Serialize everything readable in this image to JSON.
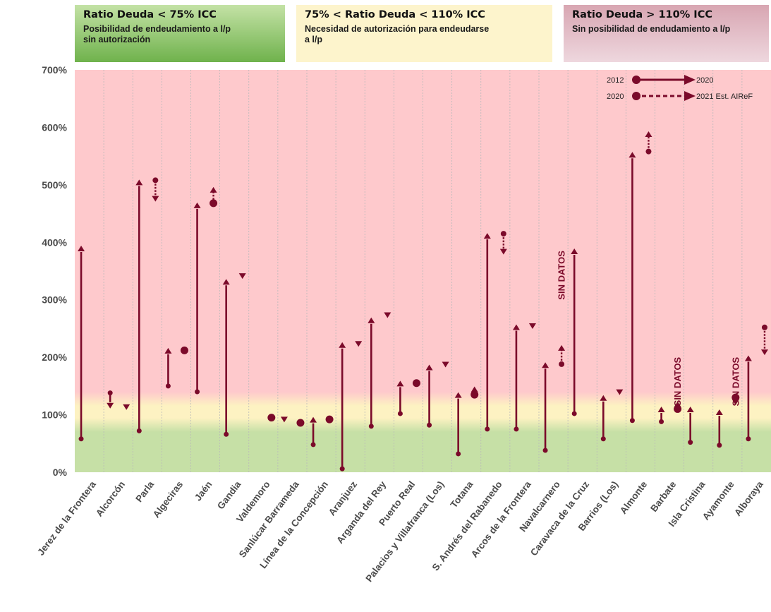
{
  "legend": {
    "low": {
      "title": "Ratio Deuda < 75% ICC",
      "desc_line1": "Posibilidad de endeudamiento a l/p",
      "desc_line2": "sin autorización",
      "color": "#79b957"
    },
    "mid": {
      "title": "75% < Ratio Deuda < 110% ICC",
      "desc_line1": "Necesidad de autorización para endeudarse",
      "desc_line2": "a l/p",
      "color": "#fdf4cc"
    },
    "high": {
      "title": "Ratio Deuda > 110% ICC",
      "desc_line1": "Sin posibilidad de endudamiento a l/p",
      "desc_line2": "",
      "color": "#e3bfc9"
    }
  },
  "key": {
    "solid_from": "2012",
    "solid_to": "2020",
    "dotted_from": "2020",
    "dotted_to": "2021 Est. AIReF"
  },
  "colors": {
    "marker": "#7b0a2a",
    "zone_red": "#fec9cc",
    "zone_yellow": "#fdf2c2",
    "zone_green": "#c6e0a6",
    "grid": "#b9b9b9",
    "axis_text": "#4a4a4a"
  },
  "no_data_label": "SIN DATOS",
  "chart_data": {
    "type": "arrow-range",
    "ylim": [
      0,
      700
    ],
    "yticks": [
      "0%",
      "100%",
      "200%",
      "300%",
      "400%",
      "500%",
      "600%",
      "700%"
    ],
    "categories": [
      "Jerez de la Frontera",
      "Alcorcón",
      "Parla",
      "Algeciras",
      "Jaén",
      "Gandia",
      "Valdemoro",
      "Sanlúcar Barrameda",
      "Línea de la Concepción",
      "Aranjuez",
      "Arganda del Rey",
      "Puerto Real",
      "Palacios y Villafranca (Los)",
      "Totana",
      "S. Andrés del Rabanedo",
      "Arcos de la Frontera",
      "Navalcarnero",
      "Caravaca de la Cruz",
      "Barrios (Los)",
      "Almonte",
      "Barbate",
      "Isla Cristina",
      "Ayamonte",
      "Alboraya"
    ],
    "series": [
      {
        "name": "2012 → 2020",
        "values": [
          [
            58,
            393
          ],
          [
            138,
            112
          ],
          [
            72,
            508
          ],
          [
            150,
            215
          ],
          [
            140,
            468
          ],
          [
            66,
            335
          ],
          [
            null,
            null
          ],
          [
            null,
            88
          ],
          [
            48,
            95
          ],
          [
            6,
            225
          ],
          [
            80,
            268
          ],
          [
            102,
            158
          ],
          [
            82,
            186
          ],
          [
            32,
            138
          ],
          [
            75,
            415
          ],
          [
            75,
            256
          ],
          [
            38,
            190
          ],
          [
            102,
            388
          ],
          [
            58,
            133
          ],
          [
            90,
            556
          ],
          [
            88,
            113
          ],
          [
            52,
            113
          ],
          [
            47,
            108
          ],
          [
            58,
            202
          ]
        ]
      },
      {
        "name": "2020 → 2021 Est. AIReF",
        "values": [
          [
            null,
            null
          ],
          [
            112,
            112
          ],
          [
            508,
            472
          ],
          [
            null,
            212
          ],
          [
            468,
            495
          ],
          [
            340,
            340
          ],
          [
            null,
            95
          ],
          [
            null,
            86
          ],
          [
            null,
            92
          ],
          [
            222,
            222
          ],
          [
            272,
            272
          ],
          [
            null,
            155
          ],
          [
            186,
            186
          ],
          [
            135,
            148
          ],
          [
            415,
            380
          ],
          [
            253,
            253
          ],
          [
            188,
            220
          ],
          [
            null,
            null
          ],
          [
            138,
            138
          ],
          [
            558,
            592
          ],
          [
            110,
            122
          ],
          [
            null,
            null
          ],
          [
            130,
            118
          ],
          [
            252,
            205
          ]
        ]
      }
    ],
    "no_data_categories": [
      "Navalcarnero",
      "Barbate",
      "Ayamonte"
    ]
  }
}
